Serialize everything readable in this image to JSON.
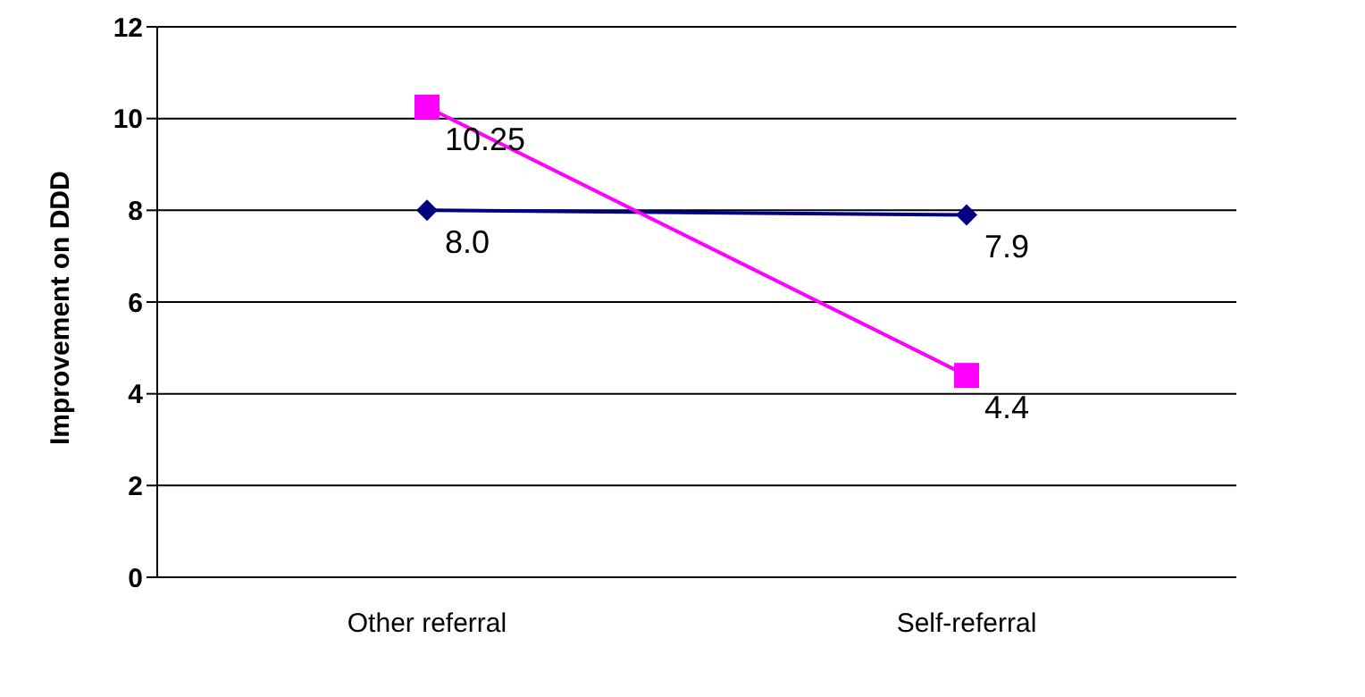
{
  "chart_data": {
    "type": "line",
    "ylabel": "Improvement on DDD",
    "categories": [
      "Other referral",
      "Self-referral"
    ],
    "series": [
      {
        "color": "#000080",
        "values": [
          8.0,
          7.9
        ],
        "value_labels": [
          "8.0",
          "7.9"
        ],
        "marker": "diamond"
      },
      {
        "color": "#ff00ff",
        "values": [
          10.25,
          4.4
        ],
        "value_labels": [
          "10.25",
          "4.4"
        ],
        "marker": "square"
      }
    ],
    "ylim": [
      0,
      12
    ],
    "yticks": [
      0,
      2,
      4,
      6,
      8,
      10,
      12
    ],
    "grid": "y"
  }
}
